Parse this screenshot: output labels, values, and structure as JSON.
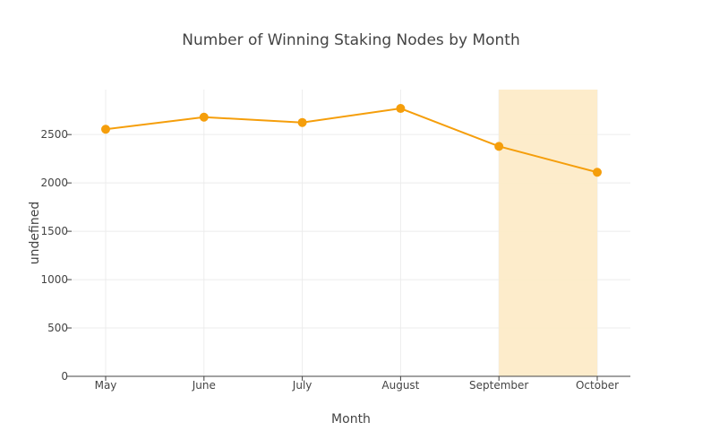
{
  "chart_data": {
    "type": "line",
    "title": "Number of Winning Staking Nodes by Month",
    "xlabel": "Month",
    "ylabel": "undefined",
    "categories": [
      "May",
      "June",
      "July",
      "August",
      "September",
      "October"
    ],
    "series": [
      {
        "values": [
          2555,
          2680,
          2625,
          2770,
          2378,
          2110
        ],
        "color": "#f59e0b"
      }
    ],
    "ylim": [
      0,
      2965
    ],
    "yticks": [
      0,
      500,
      1000,
      1500,
      2000,
      2500
    ],
    "grid": true,
    "highlight": {
      "from": "September",
      "to": "October",
      "color": "#fdebc8"
    }
  }
}
